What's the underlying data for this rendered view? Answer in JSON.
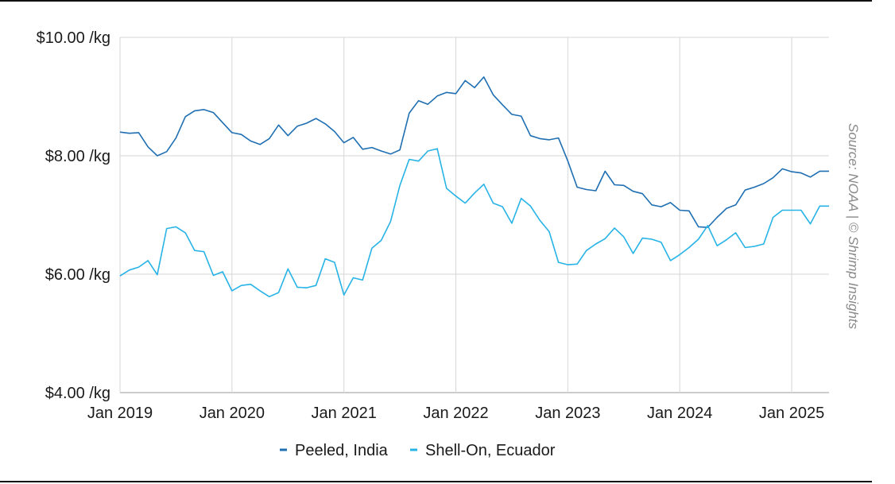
{
  "chart_data": {
    "type": "line",
    "x_ticks": [
      "Jan 2019",
      "Jan 2020",
      "Jan 2021",
      "Jan 2022",
      "Jan 2023",
      "Jan 2024",
      "Jan 2025"
    ],
    "y_ticks": [
      "$4.00 /kg",
      "$6.00 /kg",
      "$8.00 /kg",
      "$10.00 /kg"
    ],
    "ylim": [
      4,
      10
    ],
    "xlim": [
      "2019-01",
      "2025-05"
    ],
    "grid": true,
    "legend_position": "bottom",
    "source": "Source: NOAA | © Shrimp Insights",
    "colors": {
      "Peeled, India": "#1f6fb2",
      "Shell-On, Ecuador": "#27b3e6"
    },
    "x": [
      "2019-01",
      "2019-02",
      "2019-03",
      "2019-04",
      "2019-05",
      "2019-06",
      "2019-07",
      "2019-08",
      "2019-09",
      "2019-10",
      "2019-11",
      "2019-12",
      "2020-01",
      "2020-02",
      "2020-03",
      "2020-04",
      "2020-05",
      "2020-06",
      "2020-07",
      "2020-08",
      "2020-09",
      "2020-10",
      "2020-11",
      "2020-12",
      "2021-01",
      "2021-02",
      "2021-03",
      "2021-04",
      "2021-05",
      "2021-06",
      "2021-07",
      "2021-08",
      "2021-09",
      "2021-10",
      "2021-11",
      "2021-12",
      "2022-01",
      "2022-02",
      "2022-03",
      "2022-04",
      "2022-05",
      "2022-06",
      "2022-07",
      "2022-08",
      "2022-09",
      "2022-10",
      "2022-11",
      "2022-12",
      "2023-01",
      "2023-02",
      "2023-03",
      "2023-04",
      "2023-05",
      "2023-06",
      "2023-07",
      "2023-08",
      "2023-09",
      "2023-10",
      "2023-11",
      "2023-12",
      "2024-01",
      "2024-02",
      "2024-03",
      "2024-04",
      "2024-05",
      "2024-06",
      "2024-07",
      "2024-08",
      "2024-09",
      "2024-10",
      "2024-11",
      "2024-12",
      "2025-01",
      "2025-02",
      "2025-03",
      "2025-04",
      "2025-05"
    ],
    "series": [
      {
        "name": "Peeled, India",
        "values": [
          8.4,
          8.38,
          8.39,
          8.15,
          8.0,
          8.07,
          8.3,
          8.66,
          8.76,
          8.78,
          8.73,
          8.56,
          8.39,
          8.36,
          8.25,
          8.19,
          8.29,
          8.52,
          8.34,
          8.5,
          8.55,
          8.63,
          8.54,
          8.41,
          8.22,
          8.31,
          8.11,
          8.14,
          8.08,
          8.03,
          8.1,
          8.72,
          8.93,
          8.87,
          9.01,
          9.07,
          9.05,
          9.27,
          9.15,
          9.33,
          9.03,
          8.86,
          8.7,
          8.67,
          8.34,
          8.29,
          8.27,
          8.3,
          7.91,
          7.47,
          7.43,
          7.41,
          7.74,
          7.51,
          7.5,
          7.4,
          7.36,
          7.17,
          7.14,
          7.21,
          7.08,
          7.07,
          6.8,
          6.79,
          6.96,
          7.11,
          7.17,
          7.42,
          7.47,
          7.53,
          7.63,
          7.78,
          7.73,
          7.71,
          7.64,
          7.74,
          7.74
        ]
      },
      {
        "name": "Shell-On, Ecuador",
        "values": [
          5.97,
          6.07,
          6.12,
          6.23,
          5.99,
          6.77,
          6.8,
          6.7,
          6.4,
          6.38,
          5.98,
          6.04,
          5.72,
          5.81,
          5.83,
          5.72,
          5.62,
          5.69,
          6.09,
          5.78,
          5.77,
          5.81,
          6.26,
          6.2,
          5.65,
          5.94,
          5.9,
          6.44,
          6.57,
          6.89,
          7.5,
          7.94,
          7.91,
          8.08,
          8.12,
          7.45,
          7.32,
          7.2,
          7.37,
          7.52,
          7.2,
          7.14,
          6.86,
          7.28,
          7.15,
          6.91,
          6.72,
          6.2,
          6.16,
          6.17,
          6.4,
          6.51,
          6.6,
          6.78,
          6.63,
          6.35,
          6.61,
          6.59,
          6.54,
          6.23,
          6.33,
          6.45,
          6.59,
          6.82,
          6.48,
          6.58,
          6.7,
          6.45,
          6.47,
          6.51,
          6.96,
          7.08,
          7.08,
          7.08,
          6.85,
          7.15,
          7.15
        ]
      }
    ]
  }
}
